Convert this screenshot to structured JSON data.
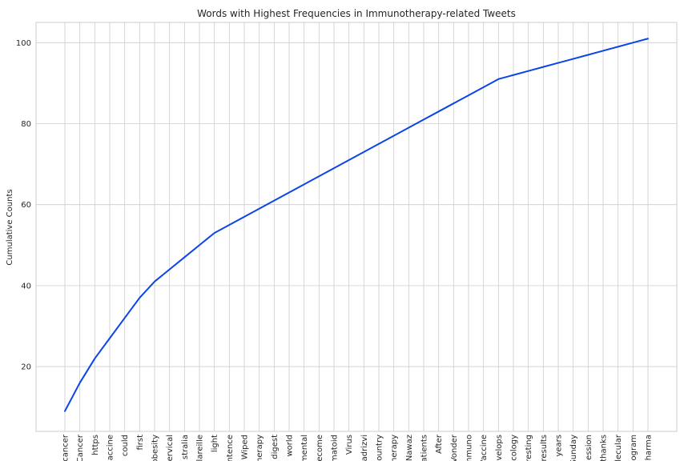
{
  "chart_data": {
    "type": "line",
    "title": "Words with Highest Frequencies in Immunotherapy-related Tweets",
    "xlabel": "",
    "ylabel": "Cumulative Counts",
    "categories": [
      "cancer",
      "Cancer",
      "https",
      "vaccine",
      "could",
      "first",
      "obesity",
      "cervical",
      "Australia",
      "Mareille",
      "light",
      "sentence",
      "Wiped",
      "therapy",
      "digest",
      "world",
      "mental",
      "become",
      "rheumatoid",
      "Virus",
      "Qadrizvi",
      "country",
      "immunotherapy",
      "Nawaz",
      "patients",
      "After",
      "Wonder",
      "immuno",
      "Vaccine",
      "develops",
      "oncology",
      "interesting",
      "results",
      "years",
      "Sunday",
      "session",
      "thanks",
      "molecular",
      "program",
      "pharma"
    ],
    "tick_labels": [
      "cancer",
      "Cancer",
      "https",
      "accine",
      "could",
      "first",
      "obesity",
      "ervical",
      "stralia",
      "lareille",
      "light",
      "entence",
      "Wiped",
      "herapy",
      "digest",
      "world",
      "mental",
      "ecome",
      "matoid",
      "Virus",
      "adrizvi",
      "ountry",
      "herapy",
      "Nawaz",
      "atients",
      "After",
      "Vonder",
      "mmuno",
      "Vaccine",
      "velops",
      "cology",
      "resting",
      "results",
      "years",
      "Sunday",
      "ession",
      "thanks",
      "lecular",
      "ogram",
      "pharma"
    ],
    "values": [
      9,
      16,
      22,
      27,
      32,
      37,
      41,
      44,
      47,
      50,
      53,
      55,
      57,
      59,
      61,
      63,
      65,
      67,
      69,
      71,
      73,
      75,
      77,
      79,
      81,
      83,
      85,
      87,
      89,
      91,
      92,
      93,
      94,
      95,
      96,
      97,
      98,
      99,
      100,
      101
    ],
    "ylim": [
      4,
      105
    ],
    "yticks": [
      20,
      40,
      60,
      80,
      100
    ],
    "grid": true,
    "line_color": "#0b45e8"
  }
}
